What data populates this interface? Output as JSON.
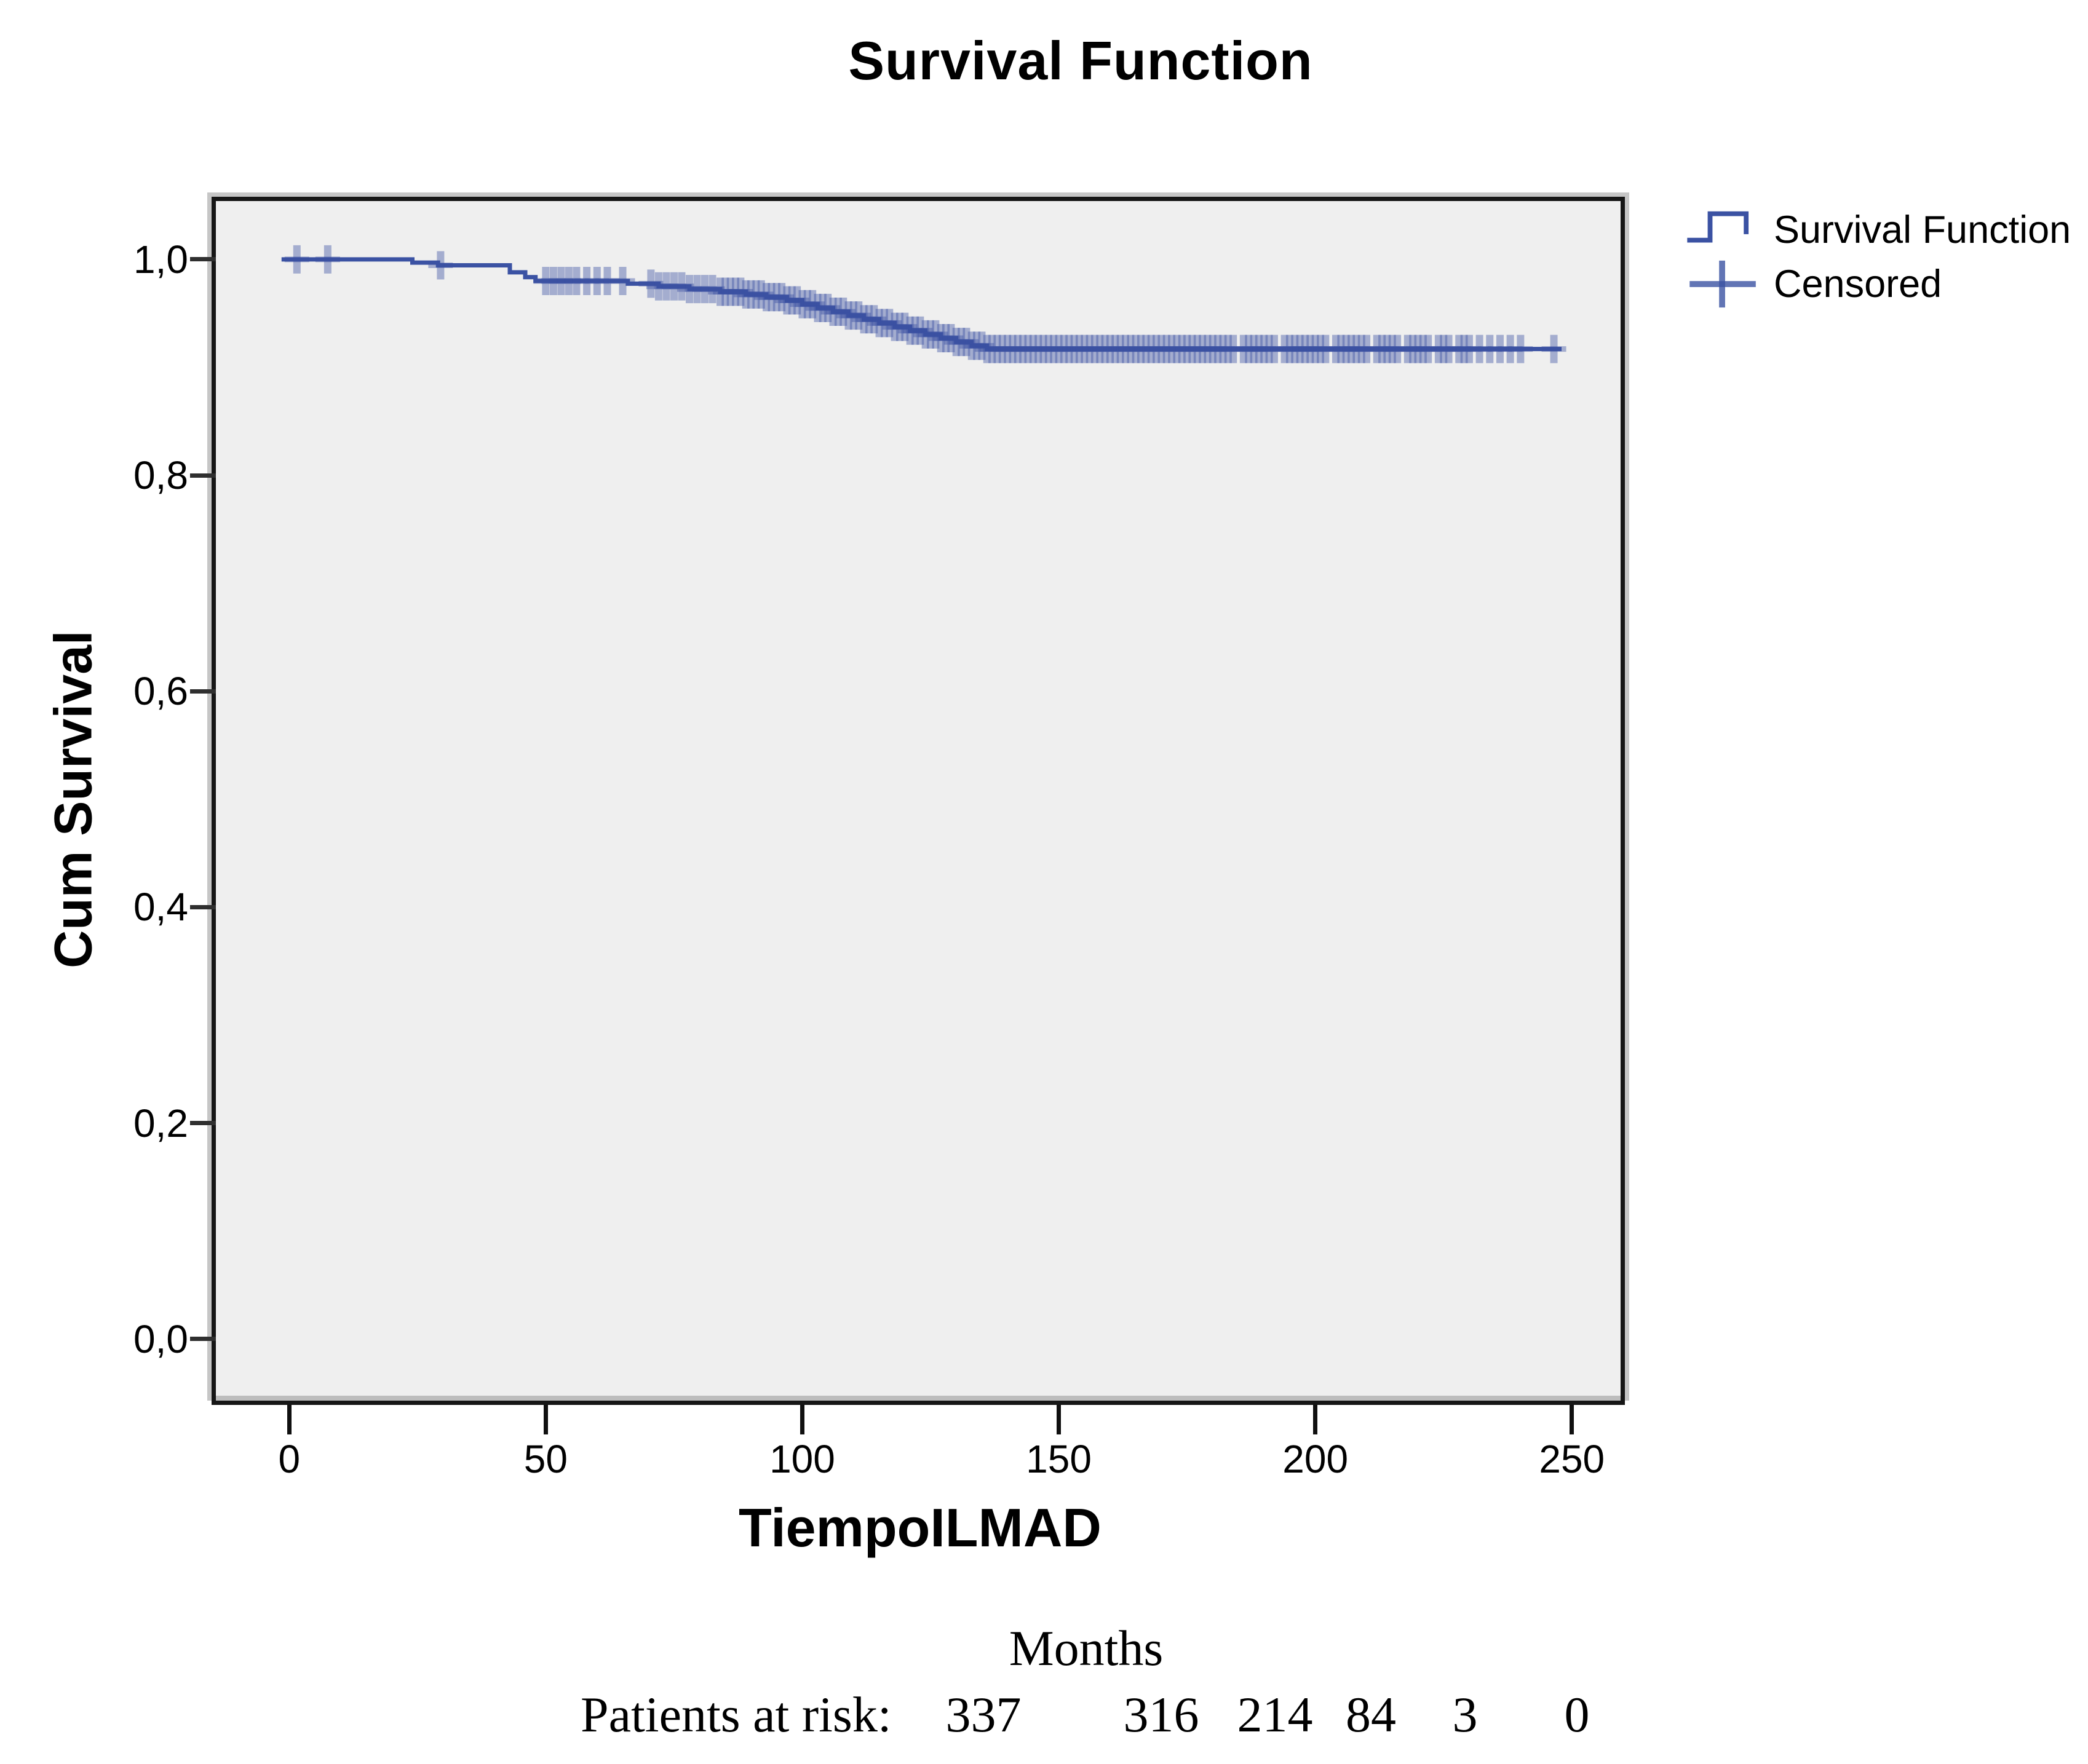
{
  "figure": {
    "title": "Survival Function"
  },
  "legend": {
    "items": [
      {
        "label": "Survival Function",
        "symbol": "step-line"
      },
      {
        "label": "Censored",
        "symbol": "plus"
      }
    ]
  },
  "axes": {
    "y_label": "Cum Survival",
    "x_label": "TiempoILMAD",
    "y_ticks": [
      {
        "value": 1.0,
        "label": "1,0"
      },
      {
        "value": 0.8,
        "label": "0,8"
      },
      {
        "value": 0.6,
        "label": "0,6"
      },
      {
        "value": 0.4,
        "label": "0,4"
      },
      {
        "value": 0.2,
        "label": "0,2"
      },
      {
        "value": 0.0,
        "label": "0,0"
      }
    ],
    "x_ticks": [
      {
        "value": 0,
        "label": "0"
      },
      {
        "value": 50,
        "label": "50"
      },
      {
        "value": 100,
        "label": "100"
      },
      {
        "value": 150,
        "label": "150"
      },
      {
        "value": 200,
        "label": "200"
      },
      {
        "value": 250,
        "label": "250"
      }
    ]
  },
  "footer": {
    "months_label": "Months"
  },
  "colors": {
    "curve": "#3B52A3",
    "plot_background": "#efefef",
    "frame": "#161616",
    "bevel": "#c6c6c6",
    "tick": "#2f2f2f"
  },
  "chart_data": {
    "type": "line",
    "subtype": "kaplan-meier-step",
    "title": "Survival Function",
    "xlabel": "TiempoILMAD",
    "ylabel": "Cum Survival",
    "x_unit": "Months",
    "xlim": [
      -14.3,
      259.5
    ],
    "ylim": [
      -0.057,
      1.054
    ],
    "grid": false,
    "legend_position": "top-right",
    "series": [
      {
        "name": "Survival Function",
        "color": "#3B52A3",
        "start_x": -1.5,
        "end_x": 248,
        "steps": [
          [
            0,
            1.0
          ],
          [
            24,
            0.997
          ],
          [
            29,
            0.9945
          ],
          [
            43,
            0.988
          ],
          [
            46,
            0.9835
          ],
          [
            48,
            0.98
          ],
          [
            66,
            0.9775
          ],
          [
            72,
            0.975
          ],
          [
            78,
            0.9725
          ],
          [
            84,
            0.97
          ],
          [
            89,
            0.9675
          ],
          [
            93,
            0.965
          ],
          [
            97,
            0.962
          ],
          [
            100,
            0.9585
          ],
          [
            103,
            0.955
          ],
          [
            106,
            0.9515
          ],
          [
            109,
            0.948
          ],
          [
            112,
            0.9445
          ],
          [
            115,
            0.941
          ],
          [
            118,
            0.9375
          ],
          [
            121,
            0.934
          ],
          [
            124,
            0.9305
          ],
          [
            127,
            0.927
          ],
          [
            130,
            0.9235
          ],
          [
            133,
            0.92
          ],
          [
            136,
            0.917
          ]
        ]
      }
    ],
    "censored": {
      "name": "Censored",
      "color": "#3B52A3",
      "months": [
        1.5,
        7.5,
        29.5,
        50,
        51.5,
        53,
        54.5,
        56,
        58,
        60,
        62,
        65,
        70.5,
        72,
        73.5,
        75,
        76.5,
        78,
        79.5,
        81,
        82.5,
        84,
        85,
        86,
        87,
        88,
        89,
        90,
        91,
        92,
        93,
        94,
        95,
        96,
        97,
        98,
        99,
        100,
        101,
        102,
        103,
        104,
        105,
        106,
        107,
        108,
        109,
        110,
        111,
        112,
        113,
        114,
        115,
        116,
        117,
        118,
        119,
        120,
        121,
        122,
        123,
        124,
        125,
        126,
        127,
        128,
        129,
        130,
        131,
        132,
        133,
        134,
        135,
        136,
        137,
        138,
        139,
        140,
        141,
        142,
        143,
        144,
        145,
        146,
        147,
        148,
        149,
        150,
        151,
        152,
        153,
        154,
        155,
        156,
        157,
        158,
        159,
        160,
        161,
        162,
        163,
        164,
        165,
        166,
        167,
        168,
        169,
        170,
        171,
        172,
        173,
        174,
        175,
        176,
        177,
        178,
        179,
        180,
        181,
        182,
        183,
        184,
        186,
        187,
        188,
        189,
        190,
        191,
        192,
        194,
        195,
        196,
        197,
        198,
        199,
        200,
        201,
        202,
        204,
        205,
        206,
        207,
        208,
        209,
        210,
        212,
        213,
        214,
        215,
        216,
        218,
        219,
        220,
        221,
        222,
        224,
        225,
        226,
        228,
        229,
        230,
        232,
        234,
        236,
        238,
        240,
        246.5
      ]
    },
    "risk_table": {
      "label": "Patients at risk:",
      "times": [
        0,
        50,
        100,
        150,
        200,
        250
      ],
      "counts": [
        337,
        316,
        214,
        84,
        3,
        0
      ]
    }
  }
}
